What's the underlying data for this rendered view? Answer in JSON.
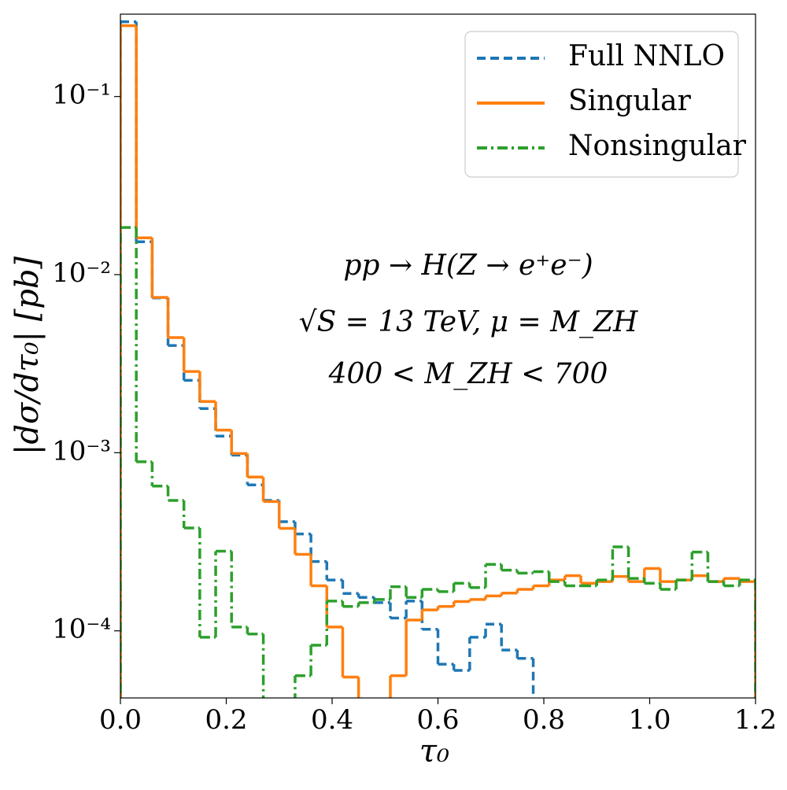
{
  "chart_data": {
    "type": "histogram",
    "xlabel": "τ₀",
    "ylabel": "|dσ/dτ₀|   [pb]",
    "annotations": [
      "pp → H(Z → e⁺e⁻)",
      "√S = 13 TeV,  μ = M_ZH",
      "400 < M_ZH < 700"
    ],
    "log_y": true,
    "legend": "upper right",
    "xlim": [
      0,
      1.2
    ],
    "ylim": [
      4.2e-05,
      0.29
    ],
    "xticks": [
      {
        "value": 0,
        "label": "0.0"
      },
      0.2,
      0.4,
      0.6,
      0.8,
      {
        "value": 1,
        "label": "1.0"
      },
      1.2
    ],
    "yticks": [
      {
        "value": 0.0001,
        "label": "10⁻⁴"
      },
      {
        "value": 0.001,
        "label": "10⁻³"
      },
      {
        "value": 0.01,
        "label": "10⁻²"
      },
      {
        "value": 0.1,
        "label": "10⁻¹"
      }
    ],
    "bins": [
      0,
      0.03,
      0.06,
      0.09,
      0.12,
      0.15,
      0.18,
      0.21,
      0.24,
      0.27,
      0.3,
      0.33,
      0.36,
      0.39,
      0.42,
      0.45,
      0.48,
      0.51,
      0.54,
      0.57,
      0.6,
      0.63,
      0.66,
      0.69,
      0.72,
      0.75,
      0.78,
      0.81,
      0.84,
      0.87,
      0.9,
      0.93,
      0.96,
      0.99,
      1.02,
      1.05,
      1.08,
      1.11,
      1.14,
      1.17,
      1.2
    ],
    "series": [
      {
        "name": "Full NNLO",
        "color": "#1f77b4",
        "style": "dashed",
        "values": [
          0.263,
          0.0153,
          0.0074,
          0.004,
          0.00255,
          0.00177,
          0.00124,
          0.00097,
          0.00066,
          0.00054,
          0.00041,
          0.00035,
          0.000245,
          0.000193,
          0.000162,
          0.000154,
          0.000144,
          0.000118,
          0.000147,
          0.000102,
          6.5e-05,
          6e-05,
          9.2e-05,
          0.000109,
          7.8e-05,
          7e-05,
          3e-05,
          3e-05,
          3e-05,
          3e-05,
          3e-05,
          3e-05,
          3e-05,
          3e-05,
          3e-05,
          3e-05,
          3e-05,
          3e-05,
          3e-05,
          3e-05
        ]
      },
      {
        "name": "Singular",
        "color": "#ff7f0e",
        "style": "solid",
        "values": [
          0.25,
          0.0161,
          0.00745,
          0.00443,
          0.00286,
          0.00194,
          0.00134,
          0.00099,
          0.00073,
          0.000532,
          0.000376,
          0.000269,
          0.000179,
          0.000105,
          5.5e-05,
          3e-05,
          3e-05,
          5.6e-05,
          0.000115,
          0.000131,
          0.000137,
          0.000146,
          0.00015,
          0.000157,
          0.000163,
          0.000171,
          0.000179,
          0.000193,
          0.000204,
          0.000185,
          0.000189,
          0.000202,
          0.000189,
          0.000224,
          0.000189,
          0.000193,
          0.000204,
          0.000189,
          0.000197,
          0.000189
        ]
      },
      {
        "name": "Nonsingular",
        "color": "#2ca02c",
        "style": "dashdot",
        "values": [
          0.0184,
          0.00089,
          0.00065,
          0.00054,
          0.000378,
          9.2e-05,
          0.00028,
          0.000105,
          9.6e-05,
          3e-05,
          3e-05,
          5.6e-05,
          8.3e-05,
          0.000147,
          0.000137,
          0.000144,
          0.00015,
          0.000177,
          0.000154,
          0.000171,
          0.000166,
          0.000185,
          0.000175,
          0.000236,
          0.000219,
          0.000211,
          0.000215,
          0.000189,
          0.000179,
          0.000179,
          0.000193,
          0.000296,
          0.000197,
          0.000185,
          0.000171,
          0.000193,
          0.000277,
          0.000189,
          0.000179,
          0.000193
        ]
      }
    ]
  }
}
